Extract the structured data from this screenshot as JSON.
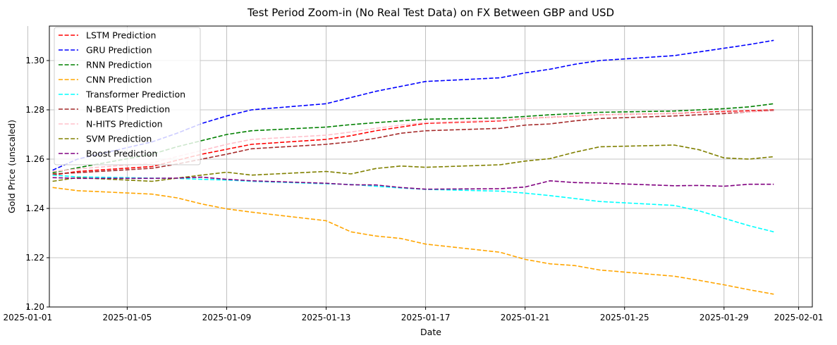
{
  "chart_data": {
    "type": "line",
    "title": "Test Period Zoom-in (No Real Test Data) on FX Between GBP and USD",
    "xlabel": "Date",
    "ylabel": "Gold Price (unscaled)",
    "x_range": [
      "2025-01-01",
      "2025-02-01"
    ],
    "ylim": [
      1.2,
      1.314
    ],
    "x_ticks": [
      "2025-01-01",
      "2025-01-05",
      "2025-01-09",
      "2025-01-13",
      "2025-01-17",
      "2025-01-21",
      "2025-01-25",
      "2025-01-29",
      "2025-02-01"
    ],
    "y_ticks": [
      1.2,
      1.22,
      1.24,
      1.26,
      1.28,
      1.3
    ],
    "y_tick_labels": [
      "1.20",
      "1.22",
      "1.24",
      "1.26",
      "1.28",
      "1.30"
    ],
    "grid": true,
    "legend_position": "top-left",
    "x": [
      "2025-01-02",
      "2025-01-03",
      "2025-01-06",
      "2025-01-07",
      "2025-01-08",
      "2025-01-09",
      "2025-01-10",
      "2025-01-13",
      "2025-01-14",
      "2025-01-15",
      "2025-01-16",
      "2025-01-17",
      "2025-01-20",
      "2025-01-21",
      "2025-01-22",
      "2025-01-23",
      "2025-01-24",
      "2025-01-27",
      "2025-01-28",
      "2025-01-29",
      "2025-01-30",
      "2025-01-31"
    ],
    "series": [
      {
        "name": "LSTM Prediction",
        "color": "#ff0000",
        "values": [
          1.2535,
          1.255,
          1.257,
          1.2595,
          1.262,
          1.264,
          1.266,
          1.268,
          1.2695,
          1.2715,
          1.273,
          1.2745,
          1.2755,
          1.2765,
          1.277,
          1.2775,
          1.278,
          1.2785,
          1.279,
          1.2793,
          1.2796,
          1.28
        ]
      },
      {
        "name": "GRU Prediction",
        "color": "#0000ff",
        "values": [
          1.2555,
          1.26,
          1.267,
          1.2705,
          1.2745,
          1.2775,
          1.28,
          1.2825,
          1.285,
          1.2875,
          1.2895,
          1.2915,
          1.293,
          1.295,
          1.2965,
          1.2985,
          1.3,
          1.302,
          1.3035,
          1.305,
          1.3065,
          1.3082
        ]
      },
      {
        "name": "RNN Prediction",
        "color": "#008000",
        "values": [
          1.2545,
          1.2565,
          1.262,
          1.265,
          1.2675,
          1.27,
          1.2715,
          1.273,
          1.274,
          1.2748,
          1.2755,
          1.2762,
          1.2767,
          1.2773,
          1.278,
          1.2785,
          1.279,
          1.2795,
          1.28,
          1.2805,
          1.2812,
          1.2825
        ]
      },
      {
        "name": "CNN Prediction",
        "color": "#ffa500",
        "values": [
          1.2485,
          1.2472,
          1.2458,
          1.2443,
          1.2418,
          1.2398,
          1.2385,
          1.235,
          1.2305,
          1.2288,
          1.2278,
          1.2255,
          1.2222,
          1.2193,
          1.2175,
          1.2168,
          1.215,
          1.2125,
          1.2108,
          1.209,
          1.207,
          1.2052
        ]
      },
      {
        "name": "Transformer Prediction",
        "color": "#00ffff",
        "values": [
          1.2535,
          1.2528,
          1.2523,
          1.2522,
          1.2518,
          1.2515,
          1.251,
          1.25,
          1.2497,
          1.249,
          1.2483,
          1.2477,
          1.247,
          1.2462,
          1.2452,
          1.244,
          1.2428,
          1.2412,
          1.239,
          1.236,
          1.233,
          1.2305
        ]
      },
      {
        "name": "N-BEATS Prediction",
        "color": "#a52a2a",
        "values": [
          1.254,
          1.2545,
          1.2563,
          1.258,
          1.26,
          1.262,
          1.2642,
          1.266,
          1.267,
          1.2685,
          1.2705,
          1.2715,
          1.2725,
          1.2738,
          1.2743,
          1.2755,
          1.2765,
          1.2775,
          1.278,
          1.2785,
          1.2792,
          1.2798
        ]
      },
      {
        "name": "N-HITS Prediction",
        "color": "#ffc0cb",
        "values": [
          1.255,
          1.256,
          1.2585,
          1.261,
          1.2635,
          1.266,
          1.268,
          1.2697,
          1.271,
          1.2725,
          1.2738,
          1.2748,
          1.2758,
          1.2765,
          1.277,
          1.2776,
          1.278,
          1.2784,
          1.2788,
          1.279,
          1.2792,
          1.2795
        ]
      },
      {
        "name": "SVM Prediction",
        "color": "#808000",
        "values": [
          1.251,
          1.2525,
          1.251,
          1.2523,
          1.2535,
          1.2547,
          1.2535,
          1.255,
          1.254,
          1.2562,
          1.2572,
          1.2567,
          1.2577,
          1.2592,
          1.2602,
          1.2628,
          1.265,
          1.2657,
          1.2638,
          1.2605,
          1.26,
          1.261
        ]
      },
      {
        "name": "Boost Prediction",
        "color": "#800080",
        "values": [
          1.2525,
          1.2522,
          1.2522,
          1.2523,
          1.2527,
          1.2518,
          1.2512,
          1.2502,
          1.2496,
          1.2495,
          1.2485,
          1.2478,
          1.248,
          1.2487,
          1.2512,
          1.2505,
          1.2503,
          1.2492,
          1.2493,
          1.249,
          1.2498,
          1.2498
        ]
      }
    ]
  }
}
